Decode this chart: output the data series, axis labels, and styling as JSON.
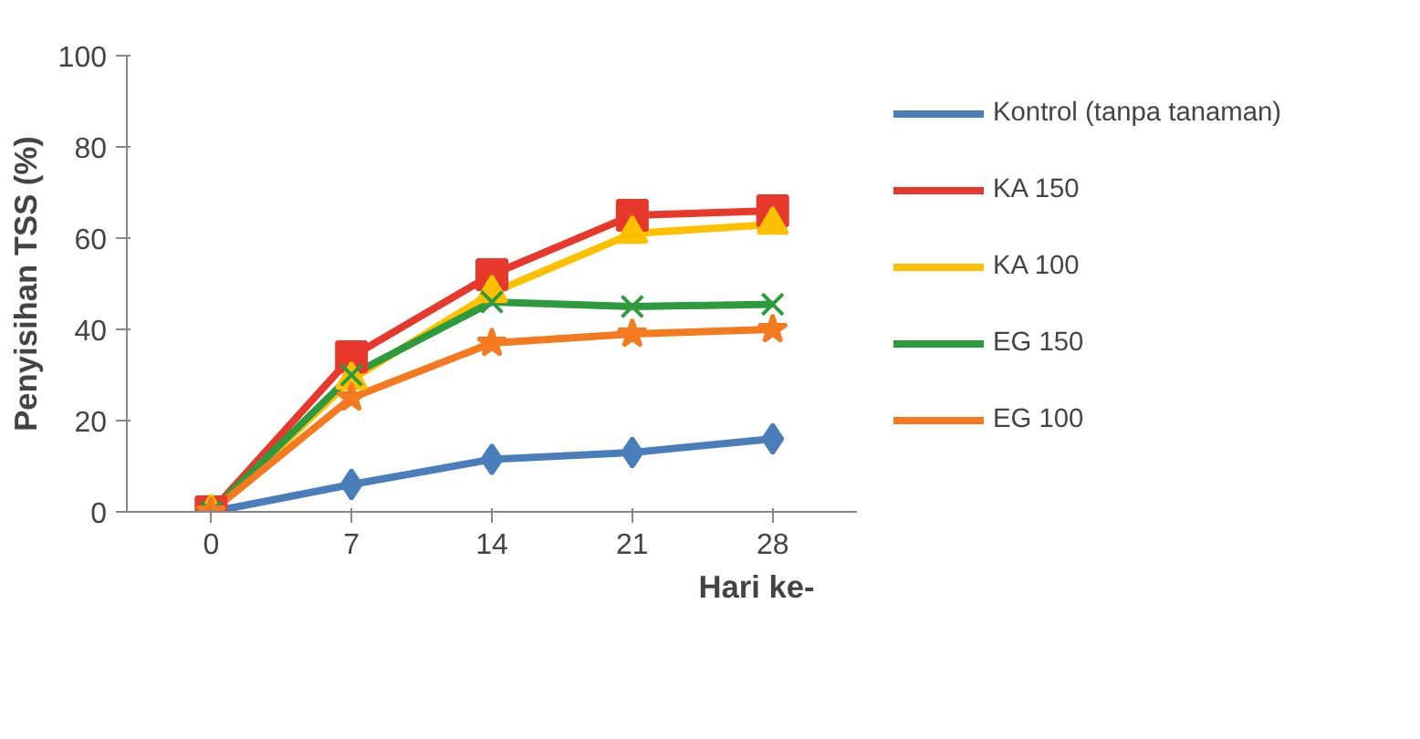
{
  "chart_data": {
    "type": "line",
    "xlabel": "Hari ke-",
    "ylabel": "Penyisihan TSS (%)",
    "categories": [
      "0",
      "7",
      "14",
      "21",
      "28"
    ],
    "ylim": [
      0,
      100
    ],
    "yticks": [
      0,
      20,
      40,
      60,
      80,
      100
    ],
    "grid": false,
    "legend": "right",
    "series": [
      {
        "name": "Kontrol (tanpa tanaman)",
        "color": "#4a7ebb",
        "marker": "diamond",
        "values": [
          0,
          6,
          11.5,
          13,
          16
        ]
      },
      {
        "name": "KA 150",
        "color": "#e8382c",
        "marker": "square",
        "values": [
          0,
          34,
          52,
          65,
          66
        ]
      },
      {
        "name": "KA 100",
        "color": "#ffc000",
        "marker": "triangle",
        "values": [
          0,
          29,
          48,
          61,
          63
        ]
      },
      {
        "name": "EG 150",
        "color": "#2e9a3e",
        "marker": "cross",
        "values": [
          0,
          30,
          46,
          45,
          45.5
        ]
      },
      {
        "name": "EG 100",
        "color": "#f57a1f",
        "marker": "star",
        "values": [
          0,
          25,
          37,
          39,
          40
        ]
      }
    ]
  }
}
